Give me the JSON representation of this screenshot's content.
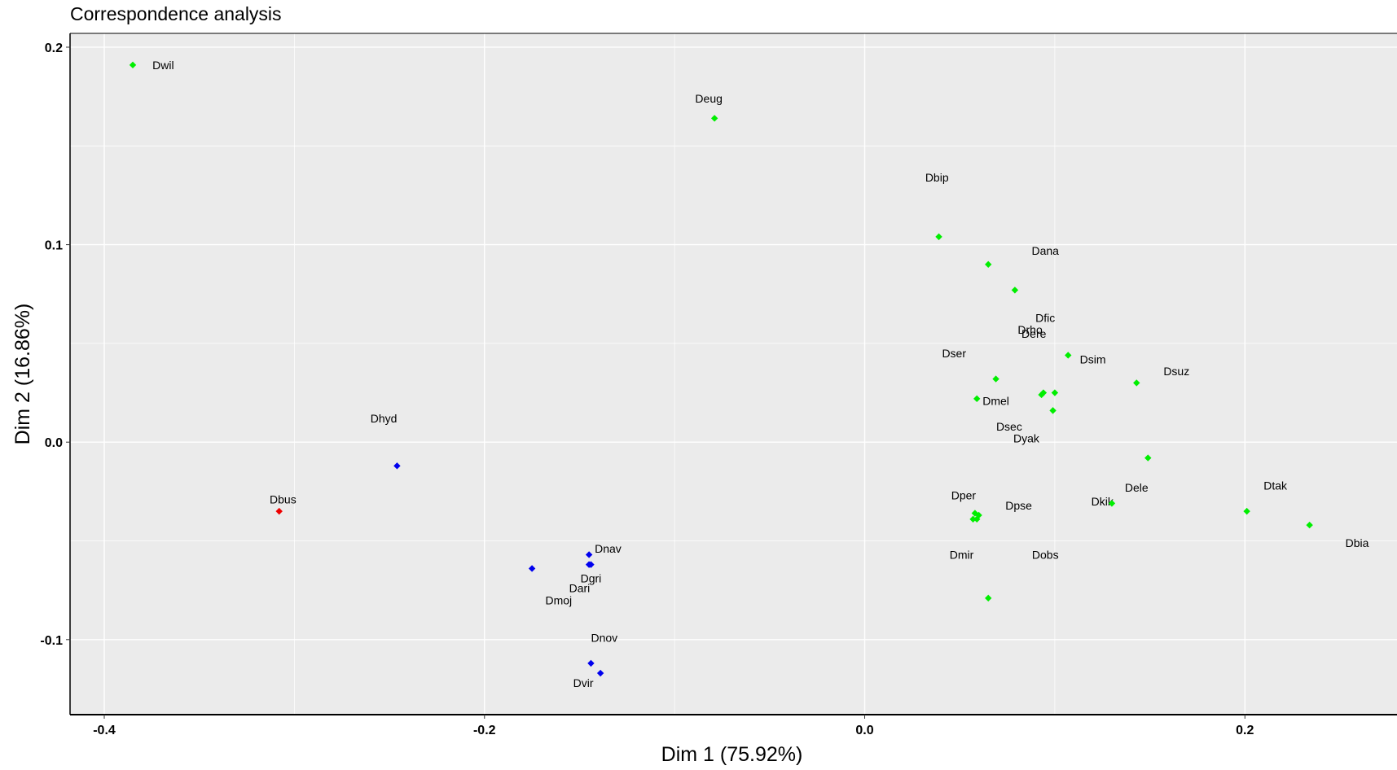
{
  "chart_data": {
    "type": "scatter",
    "title": "Correspondence analysis",
    "xlabel": "Dim 1 (75.92%)",
    "ylabel": "Dim 2 (16.86%)",
    "xlim": [
      -0.418,
      0.28
    ],
    "ylim": [
      -0.138,
      0.207
    ],
    "xticks": [
      -0.4,
      -0.2,
      0.0,
      0.2
    ],
    "xtick_labels": [
      "-0.4",
      "-0.2",
      "0.0",
      "0.2"
    ],
    "yticks": [
      -0.1,
      0.0,
      0.1,
      0.2
    ],
    "ytick_labels": [
      "-0.1",
      "0.0",
      "0.1",
      "0.2"
    ],
    "grid": true,
    "background": "#ebebeb",
    "grid_color": "#ffffff",
    "colors": {
      "green": "#00ee00",
      "blue": "#0000ee",
      "red": "#ee0000"
    },
    "points": [
      {
        "x": -0.385,
        "y": 0.191,
        "color": "green"
      },
      {
        "x": -0.079,
        "y": 0.164,
        "color": "green"
      },
      {
        "x": 0.039,
        "y": 0.104,
        "color": "green"
      },
      {
        "x": 0.065,
        "y": 0.09,
        "color": "green"
      },
      {
        "x": 0.079,
        "y": 0.077,
        "color": "green"
      },
      {
        "x": 0.107,
        "y": 0.044,
        "color": "green"
      },
      {
        "x": 0.143,
        "y": 0.03,
        "color": "green"
      },
      {
        "x": 0.069,
        "y": 0.032,
        "color": "green"
      },
      {
        "x": 0.059,
        "y": 0.022,
        "color": "green"
      },
      {
        "x": 0.093,
        "y": 0.024,
        "color": "green"
      },
      {
        "x": 0.094,
        "y": 0.025,
        "color": "green"
      },
      {
        "x": 0.1,
        "y": 0.025,
        "color": "green"
      },
      {
        "x": 0.099,
        "y": 0.016,
        "color": "green"
      },
      {
        "x": 0.149,
        "y": -0.008,
        "color": "green"
      },
      {
        "x": 0.058,
        "y": -0.036,
        "color": "green"
      },
      {
        "x": 0.06,
        "y": -0.037,
        "color": "green"
      },
      {
        "x": 0.059,
        "y": -0.039,
        "color": "green"
      },
      {
        "x": 0.057,
        "y": -0.039,
        "color": "green"
      },
      {
        "x": 0.13,
        "y": -0.031,
        "color": "green"
      },
      {
        "x": 0.201,
        "y": -0.035,
        "color": "green"
      },
      {
        "x": 0.234,
        "y": -0.042,
        "color": "green"
      },
      {
        "x": 0.065,
        "y": -0.079,
        "color": "green"
      },
      {
        "x": -0.246,
        "y": -0.012,
        "color": "blue"
      },
      {
        "x": -0.175,
        "y": -0.064,
        "color": "blue"
      },
      {
        "x": -0.145,
        "y": -0.057,
        "color": "blue"
      },
      {
        "x": -0.144,
        "y": -0.062,
        "color": "blue"
      },
      {
        "x": -0.145,
        "y": -0.062,
        "color": "blue"
      },
      {
        "x": -0.144,
        "y": -0.112,
        "color": "blue"
      },
      {
        "x": -0.139,
        "y": -0.117,
        "color": "blue"
      },
      {
        "x": -0.308,
        "y": -0.035,
        "color": "red"
      }
    ],
    "labels": [
      {
        "text": "Dwil",
        "x": -0.369,
        "y": 0.191,
        "anchor": "middle"
      },
      {
        "text": "Deug",
        "x": -0.082,
        "y": 0.174,
        "anchor": "middle"
      },
      {
        "text": "Dbip",
        "x": 0.038,
        "y": 0.134,
        "anchor": "middle"
      },
      {
        "text": "Dana",
        "x": 0.095,
        "y": 0.097,
        "anchor": "middle"
      },
      {
        "text": "Dfic",
        "x": 0.095,
        "y": 0.063,
        "anchor": "middle"
      },
      {
        "text": "Drho",
        "x": 0.087,
        "y": 0.057,
        "anchor": "middle"
      },
      {
        "text": "Dere",
        "x": 0.089,
        "y": 0.055,
        "anchor": "middle"
      },
      {
        "text": "Dser",
        "x": 0.047,
        "y": 0.045,
        "anchor": "middle"
      },
      {
        "text": "Dsim",
        "x": 0.12,
        "y": 0.042,
        "anchor": "middle"
      },
      {
        "text": "Dsuz",
        "x": 0.164,
        "y": 0.036,
        "anchor": "middle"
      },
      {
        "text": "Dmel",
        "x": 0.069,
        "y": 0.021,
        "anchor": "middle"
      },
      {
        "text": "Dsec",
        "x": 0.076,
        "y": 0.008,
        "anchor": "middle"
      },
      {
        "text": "Dyak",
        "x": 0.085,
        "y": 0.002,
        "anchor": "middle"
      },
      {
        "text": "Dhyd",
        "x": -0.253,
        "y": 0.012,
        "anchor": "middle"
      },
      {
        "text": "Dbus",
        "x": -0.306,
        "y": -0.029,
        "anchor": "middle"
      },
      {
        "text": "Dper",
        "x": 0.052,
        "y": -0.027,
        "anchor": "middle"
      },
      {
        "text": "Dpse",
        "x": 0.081,
        "y": -0.032,
        "anchor": "middle"
      },
      {
        "text": "Dkik",
        "x": 0.125,
        "y": -0.03,
        "anchor": "middle"
      },
      {
        "text": "Dele",
        "x": 0.143,
        "y": -0.023,
        "anchor": "middle"
      },
      {
        "text": "Dtak",
        "x": 0.216,
        "y": -0.022,
        "anchor": "middle"
      },
      {
        "text": "Dbia",
        "x": 0.259,
        "y": -0.051,
        "anchor": "middle"
      },
      {
        "text": "Dnav",
        "x": -0.135,
        "y": -0.054,
        "anchor": "middle"
      },
      {
        "text": "Dmir",
        "x": 0.051,
        "y": -0.057,
        "anchor": "middle"
      },
      {
        "text": "Dobs",
        "x": 0.095,
        "y": -0.057,
        "anchor": "middle"
      },
      {
        "text": "Dgri",
        "x": -0.144,
        "y": -0.069,
        "anchor": "middle"
      },
      {
        "text": "Dari",
        "x": -0.15,
        "y": -0.074,
        "anchor": "middle"
      },
      {
        "text": "Dmoj",
        "x": -0.161,
        "y": -0.08,
        "anchor": "middle"
      },
      {
        "text": "Dnov",
        "x": -0.137,
        "y": -0.099,
        "anchor": "middle"
      },
      {
        "text": "Dvir",
        "x": -0.148,
        "y": -0.122,
        "anchor": "middle"
      }
    ]
  }
}
